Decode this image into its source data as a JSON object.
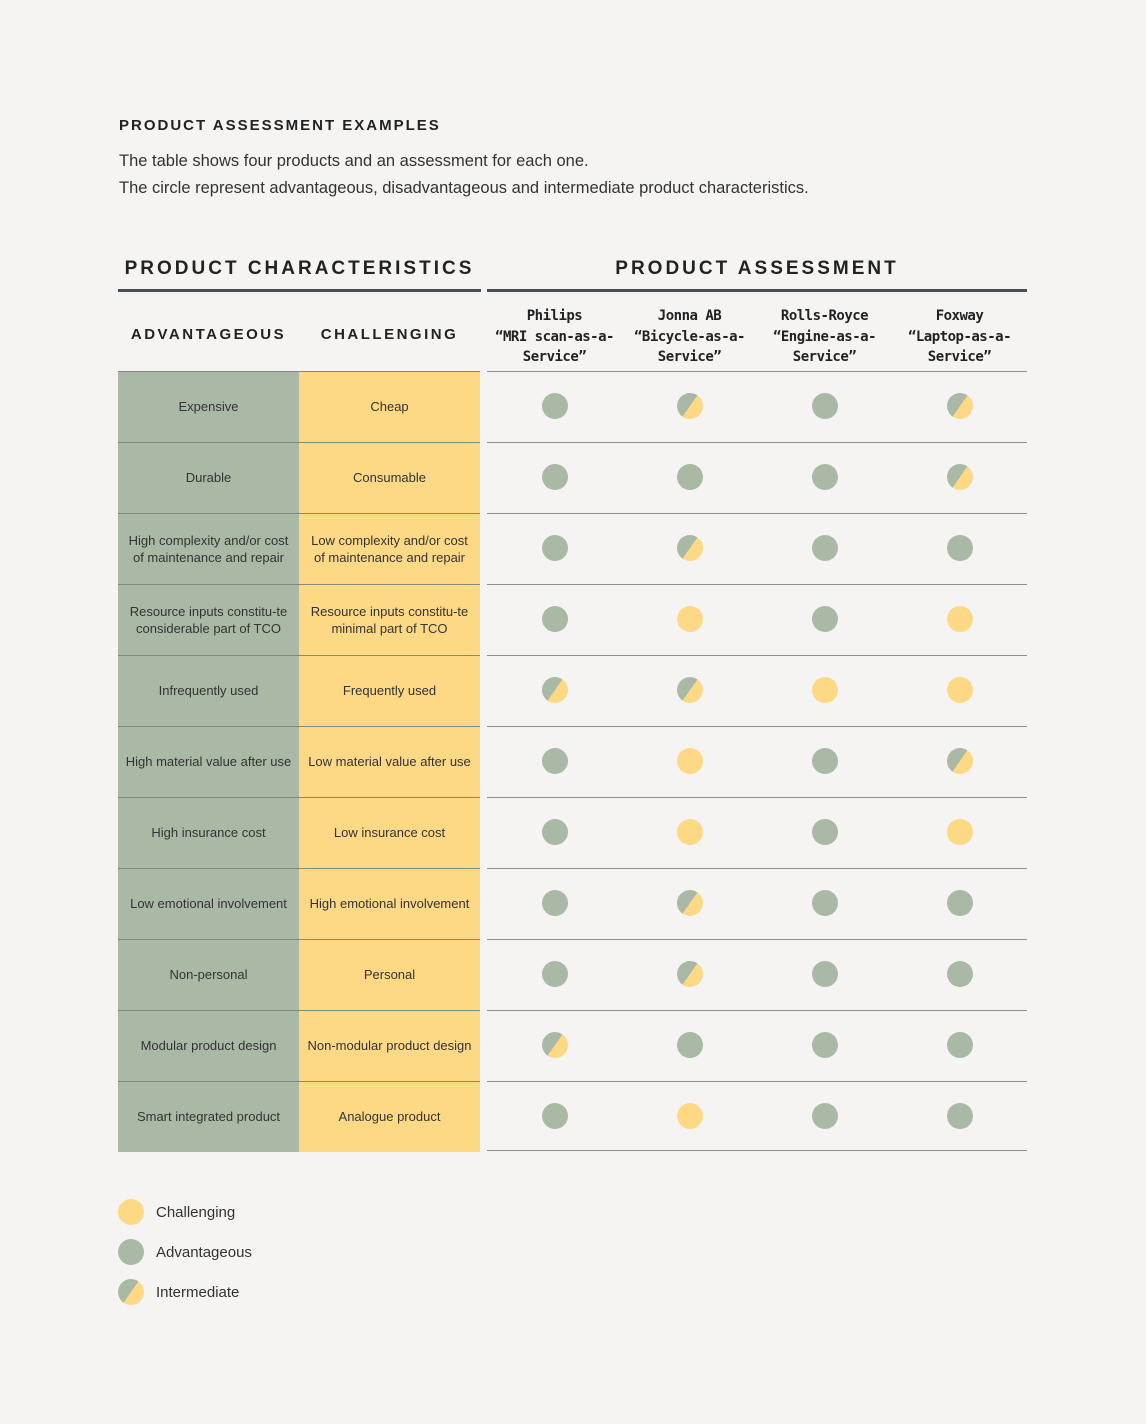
{
  "kicker": "PRODUCT ASSESSMENT EXAMPLES",
  "intro": [
    "The table shows four products and an assessment for each one.",
    "The circle represent advantageous, disadvantageous and intermediate product characteristics."
  ],
  "sections": {
    "characteristics": "PRODUCT CHARACTERISTICS",
    "assessment": "PRODUCT ASSESSMENT"
  },
  "columns": {
    "advantageous": "ADVANTAGEOUS",
    "challenging": "CHALLENGING"
  },
  "products": [
    {
      "name": "Philips",
      "service": "“MRI scan-as-a-Service”"
    },
    {
      "name": "Jonna AB",
      "service": "“Bicycle-as-a-Service”"
    },
    {
      "name": "Rolls-Royce",
      "service": "“Engine-as-a-Service”"
    },
    {
      "name": "Foxway",
      "service": "“Laptop-as-a-Service”"
    }
  ],
  "colors": {
    "advantageous": "#a9b9a6",
    "challenging": "#fed985"
  },
  "rows": [
    {
      "advantageous": "Expensive",
      "challenging": "Cheap",
      "assessment": [
        "advantageous",
        "intermediate",
        "advantageous",
        "intermediate"
      ]
    },
    {
      "advantageous": "Durable",
      "challenging": "Consumable",
      "assessment": [
        "advantageous",
        "advantageous",
        "advantageous",
        "intermediate"
      ]
    },
    {
      "advantageous": "High complexity and/or cost of maintenance and repair",
      "challenging": "Low complexity and/or cost of maintenance and repair",
      "assessment": [
        "advantageous",
        "intermediate",
        "advantageous",
        "advantageous"
      ]
    },
    {
      "advantageous": "Resource inputs constitu-te considerable part of TCO",
      "challenging": "Resource inputs constitu-te minimal part of TCO",
      "assessment": [
        "advantageous",
        "challenging",
        "advantageous",
        "challenging"
      ]
    },
    {
      "advantageous": "Infrequently used",
      "challenging": "Frequently used",
      "assessment": [
        "intermediate",
        "intermediate",
        "challenging",
        "challenging"
      ]
    },
    {
      "advantageous": "High material value after use",
      "challenging": "Low material value after use",
      "assessment": [
        "advantageous",
        "challenging",
        "advantageous",
        "intermediate"
      ]
    },
    {
      "advantageous": "High insurance cost",
      "challenging": "Low insurance cost",
      "assessment": [
        "advantageous",
        "challenging",
        "advantageous",
        "challenging"
      ]
    },
    {
      "advantageous": "Low emotional involvement",
      "challenging": "High emotional involvement",
      "assessment": [
        "advantageous",
        "intermediate",
        "advantageous",
        "advantageous"
      ]
    },
    {
      "advantageous": "Non-personal",
      "challenging": "Personal",
      "assessment": [
        "advantageous",
        "intermediate",
        "advantageous",
        "advantageous"
      ]
    },
    {
      "advantageous": "Modular product design",
      "challenging": "Non-modular product design",
      "assessment": [
        "intermediate",
        "advantageous",
        "advantageous",
        "advantageous"
      ]
    },
    {
      "advantageous": "Smart integrated product",
      "challenging": "Analogue  product",
      "assessment": [
        "advantageous",
        "challenging",
        "advantageous",
        "advantageous"
      ]
    }
  ],
  "legend": [
    {
      "type": "challenging",
      "label": "Challenging"
    },
    {
      "type": "advantageous",
      "label": "Advantageous"
    },
    {
      "type": "intermediate",
      "label": "Intermediate"
    }
  ]
}
